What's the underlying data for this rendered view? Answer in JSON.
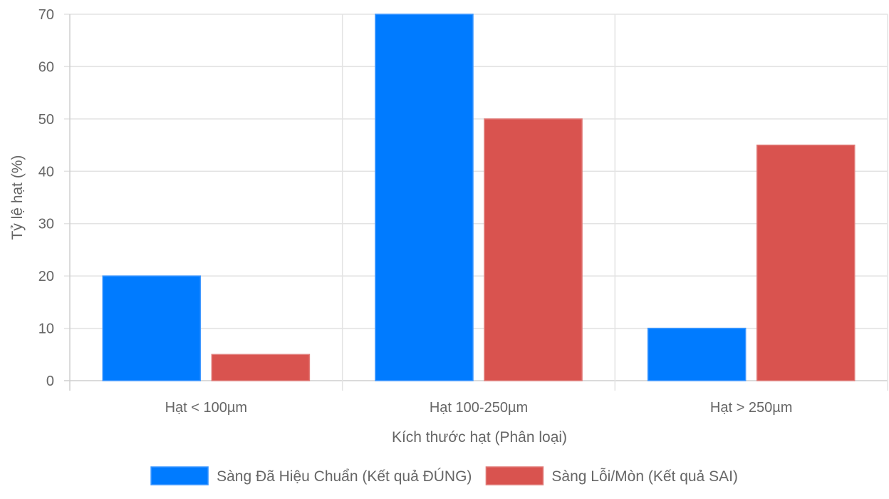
{
  "chart_data": {
    "type": "bar",
    "categories": [
      "Hạt < 100µm",
      "Hạt 100-250µm",
      "Hạt > 250µm"
    ],
    "series": [
      {
        "name": "Sàng Đã Hiệu Chuẩn (Kết quả ĐÚNG)",
        "values": [
          20,
          70,
          10
        ],
        "color": "#007bff",
        "border": "#3d97ff"
      },
      {
        "name": "Sàng Lỗi/Mòn (Kết quả SAI)",
        "values": [
          5,
          50,
          45
        ],
        "color": "#d9534f",
        "border": "#e07a77"
      }
    ],
    "xlabel": "Kích thước hạt (Phân loại)",
    "ylabel": "Tỷ lệ hạt (%)",
    "ylim": [
      0,
      70
    ],
    "yticks": [
      0,
      10,
      20,
      30,
      40,
      50,
      60,
      70
    ],
    "grid": true,
    "legend_position": "bottom"
  }
}
